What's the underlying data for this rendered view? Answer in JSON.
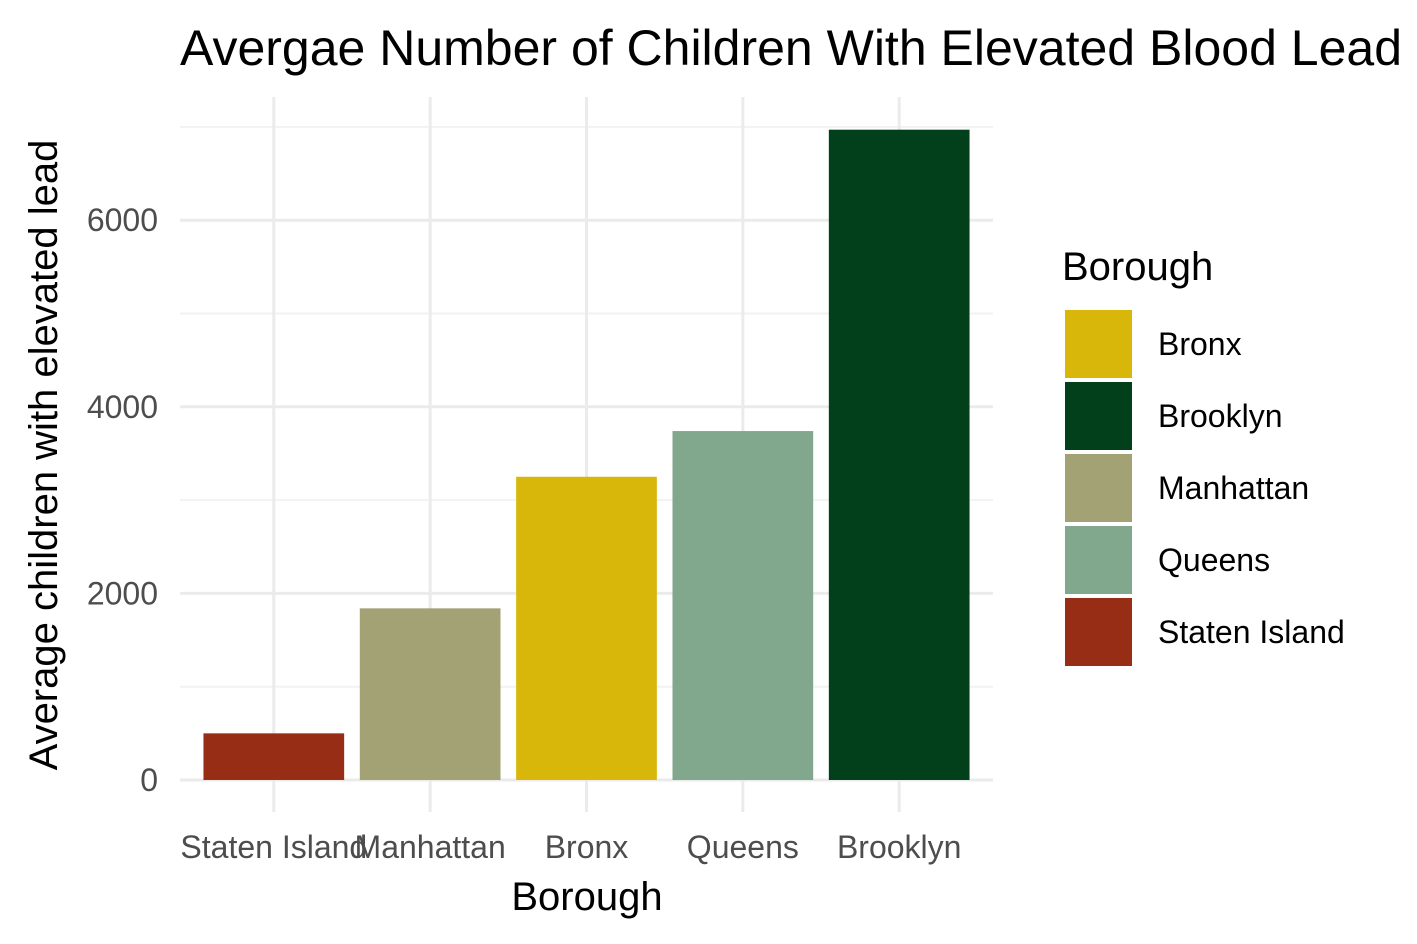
{
  "chart_data": {
    "type": "bar",
    "title": "Avergae Number of Children With Elevated Blood Lead",
    "xlabel": "Borough",
    "ylabel": "Average children with elevated lead",
    "categories": [
      "Staten Island",
      "Manhattan",
      "Bronx",
      "Queens",
      "Brooklyn"
    ],
    "values": [
      500,
      1840,
      3250,
      3740,
      6970
    ],
    "colors": {
      "Staten Island": "#982d16",
      "Manhattan": "#a2a275",
      "Bronx": "#d8b70a",
      "Queens": "#81a88d",
      "Brooklyn": "#02401b"
    },
    "ylim": [
      0,
      7000
    ],
    "yticks": [
      0,
      2000,
      4000,
      6000
    ],
    "grid": true,
    "legend": {
      "title": "Borough",
      "position": "right",
      "entries": [
        "Bronx",
        "Brooklyn",
        "Manhattan",
        "Queens",
        "Staten Island"
      ]
    }
  }
}
